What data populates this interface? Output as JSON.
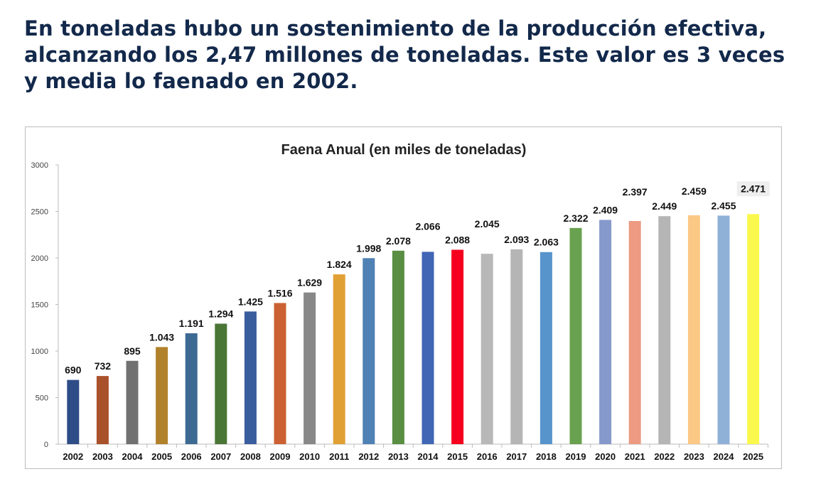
{
  "headline": "En toneladas hubo un sostenimiento de la producción efectiva, alcanzando los 2,47 millones de toneladas. Este valor es 3 veces y media lo faenado en 2002.",
  "chart_data": {
    "type": "bar",
    "title": "Faena Anual (en miles de toneladas)",
    "xlabel": "",
    "ylabel": "",
    "ylim": [
      0,
      3000
    ],
    "yticks": [
      0,
      500,
      1000,
      1500,
      2000,
      2500,
      3000
    ],
    "grid": false,
    "legend": "none",
    "categories": [
      "2002",
      "2003",
      "2004",
      "2005",
      "2006",
      "2007",
      "2008",
      "2009",
      "2010",
      "2011",
      "2012",
      "2013",
      "2014",
      "2015",
      "2016",
      "2017",
      "2018",
      "2019",
      "2020",
      "2021",
      "2022",
      "2023",
      "2024",
      "2025"
    ],
    "values": [
      690,
      732,
      895,
      1043,
      1191,
      1294,
      1425,
      1516,
      1629,
      1824,
      1998,
      2078,
      2066,
      2088,
      2045,
      2093,
      2063,
      2322,
      2409,
      2397,
      2449,
      2459,
      2455,
      2471
    ],
    "data_labels": [
      "690",
      "732",
      "895",
      "1.043",
      "1.191",
      "1.294",
      "1.425",
      "1.516",
      "1.629",
      "1.824",
      "1.998",
      "2.078",
      "2.066",
      "2.088",
      "2.045",
      "2.093",
      "2.063",
      "2.322",
      "2.409",
      "2.397",
      "2.449",
      "2.459",
      "2.455",
      "2.471"
    ],
    "colors": [
      "#2e4d87",
      "#a9512b",
      "#717171",
      "#b1822b",
      "#3d6a93",
      "#4a7636",
      "#3a5d9e",
      "#cb6133",
      "#888888",
      "#e0a034",
      "#4f81b4",
      "#5a8e43",
      "#4066b4",
      "#f5001f",
      "#b8b8b8",
      "#b5b5b5",
      "#5694cb",
      "#68a14f",
      "#8699cb",
      "#ec9a82",
      "#b5b5b5",
      "#fcc886",
      "#8fb1d8",
      "#fbf84d"
    ],
    "highlighted_label": "2025"
  }
}
